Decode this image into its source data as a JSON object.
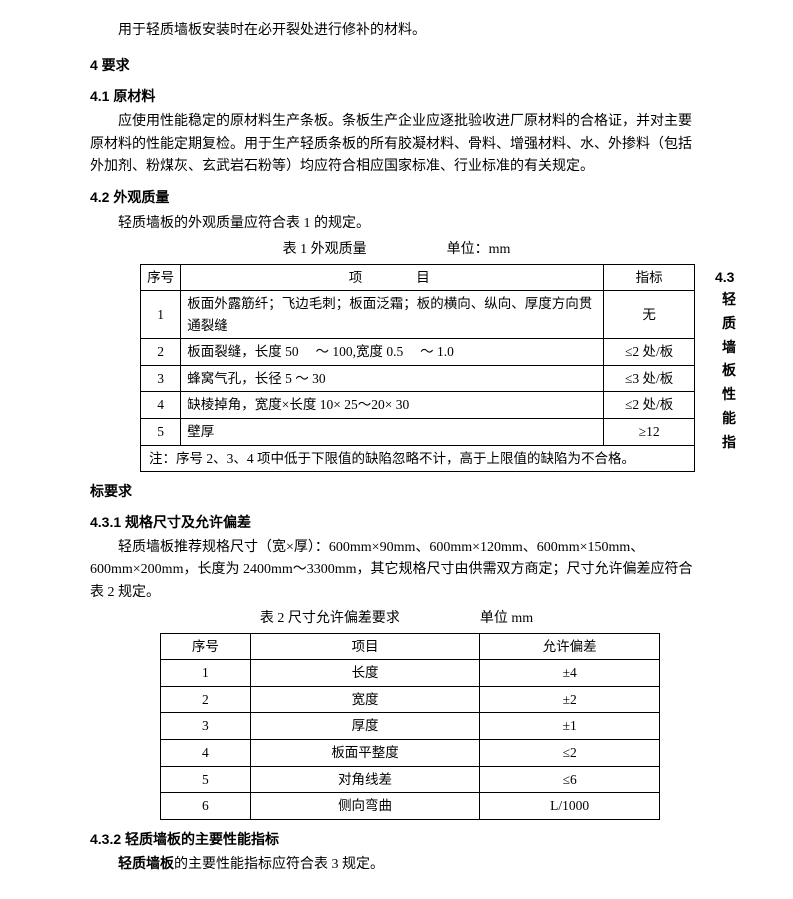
{
  "intro_para": "用于轻质墙板安装时在必开裂处进行修补的材料。",
  "s4": {
    "heading": "4 要求"
  },
  "s4_1": {
    "heading": "4.1 原材料",
    "para": "应使用性能稳定的原材料生产条板。条板生产企业应逐批验收进厂原材料的合格证，并对主要原材料的性能定期复检。用于生产轻质条板的所有胶凝材料、骨料、增强材料、水、外掺料（包括外加剂、粉煤灰、玄武岩石粉等）均应符合相应国家标准、行业标准的有关规定。"
  },
  "s4_2": {
    "heading": "4.2 外观质量",
    "para": "轻质墙板的外观质量应符合表 1 的规定。"
  },
  "table1": {
    "title": "表 1   外观质量",
    "unit": "单位：mm",
    "cols": {
      "seq": "序号",
      "item": "项目",
      "value": "指标"
    },
    "rows": [
      {
        "seq": "1",
        "item": "板面外露筋纤；飞边毛刺；板面泛霜；板的横向、纵向、厚度方向贯通裂缝",
        "value": "无"
      },
      {
        "seq": "2",
        "item": "板面裂缝，长度 50 　～ 100,宽度 0.5 　～ 1.0",
        "value": "≤2 处/板"
      },
      {
        "seq": "3",
        "item": "蜂窝气孔，长径 5 ～ 30",
        "value": "≤3 处/板"
      },
      {
        "seq": "4",
        "item": "缺棱掉角，宽度×长度  10× 25～20× 30",
        "value": "≤2 处/板"
      },
      {
        "seq": "5",
        "item": "壁厚",
        "value": "≥12"
      }
    ],
    "note": "注：序号 2、3、4 项中低于下限值的缺陷忽略不计，高于上限值的缺陷为不合格。"
  },
  "s4_3": {
    "float_num": "4.3",
    "float_text": "轻质墙板性能指",
    "heading_cont": "标要求"
  },
  "s4_3_1": {
    "heading": "4.3.1 规格尺寸及允许偏差",
    "para": "轻质墙板推荐规格尺寸（宽×厚）：600mm×90mm、600mm×120mm、600mm×150mm、600mm×200mm，长度为 2400mm～3300mm，其它规格尺寸由供需双方商定；尺寸允许偏差应符合表 2 规定。"
  },
  "table2": {
    "title": "表 2  尺寸允许偏差要求",
    "unit": "单位 mm",
    "cols": {
      "seq": "序号",
      "item": "项目",
      "value": "允许偏差"
    },
    "rows": [
      {
        "seq": "1",
        "item": "长度",
        "value": "±4"
      },
      {
        "seq": "2",
        "item": "宽度",
        "value": "±2"
      },
      {
        "seq": "3",
        "item": "厚度",
        "value": "±1"
      },
      {
        "seq": "4",
        "item": "板面平整度",
        "value": "≤2"
      },
      {
        "seq": "5",
        "item": "对角线差",
        "value": "≤6"
      },
      {
        "seq": "6",
        "item": "侧向弯曲",
        "value": "L/1000"
      }
    ]
  },
  "s4_3_2": {
    "heading": "4.3.2  轻质墙板的主要性能指标",
    "para_prefix_bold": "轻质墙板",
    "para_rest": "的主要性能指标应符合表 3 规定。"
  }
}
